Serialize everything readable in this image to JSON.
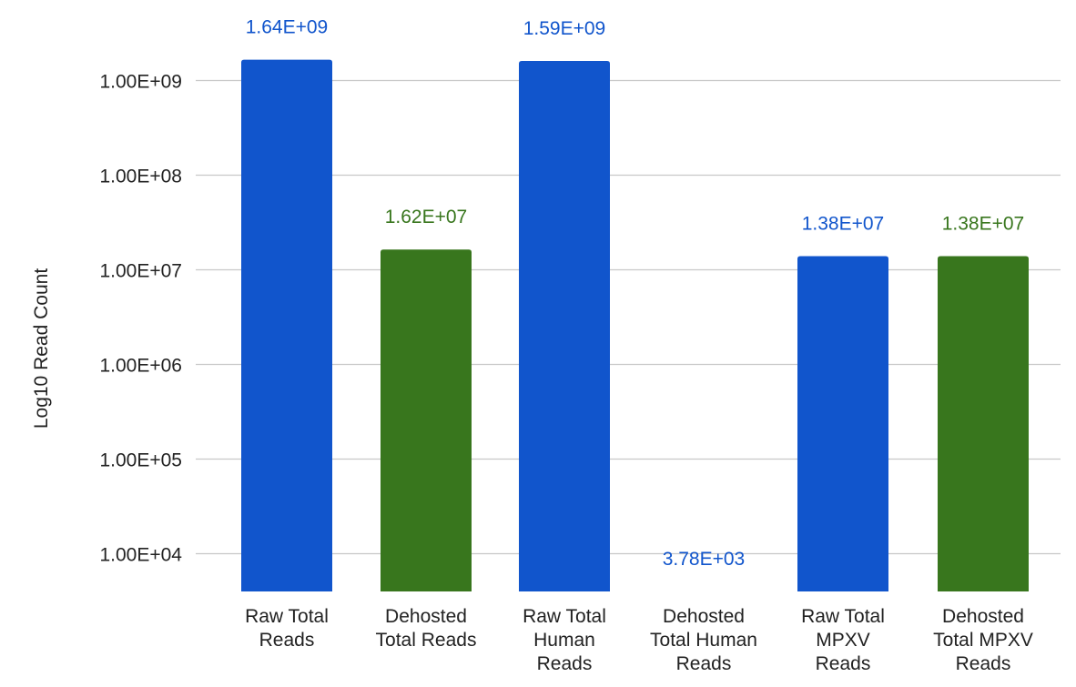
{
  "chart_data": {
    "type": "bar",
    "title": "",
    "xlabel": "",
    "ylabel": "Log10 Read Count",
    "yscale": "log",
    "ylim": [
      1000,
      2000000000
    ],
    "grid": true,
    "yticks": [
      10000,
      100000,
      1000000,
      10000000,
      100000000,
      1000000000
    ],
    "ytick_labels": [
      "1.00E+04",
      "1.00E+05",
      "1.00E+06",
      "1.00E+07",
      "1.00E+08",
      "1.00E+09"
    ],
    "categories": [
      [
        "Raw Total",
        "Reads"
      ],
      [
        "Dehosted",
        "Total Reads"
      ],
      [
        "Raw Total",
        "Human",
        "Reads"
      ],
      [
        "Dehosted",
        "Total Human",
        "Reads"
      ],
      [
        "Raw Total",
        "MPXV",
        "Reads"
      ],
      [
        "Dehosted",
        "Total MPXV",
        "Reads"
      ]
    ],
    "values": [
      1640000000,
      16200000,
      1590000000,
      3780,
      13800000,
      13800000
    ],
    "value_labels": [
      "1.64E+09",
      "1.62E+07",
      "1.59E+09",
      "3.78E+03",
      "1.38E+07",
      "1.38E+07"
    ],
    "bar_colors": [
      "#1155cc",
      "#38761d",
      "#1155cc",
      "#1155cc",
      "#1155cc",
      "#38761d"
    ],
    "label_colors": [
      "#1155cc",
      "#38761d",
      "#1155cc",
      "#1155cc",
      "#1155cc",
      "#38761d"
    ]
  }
}
